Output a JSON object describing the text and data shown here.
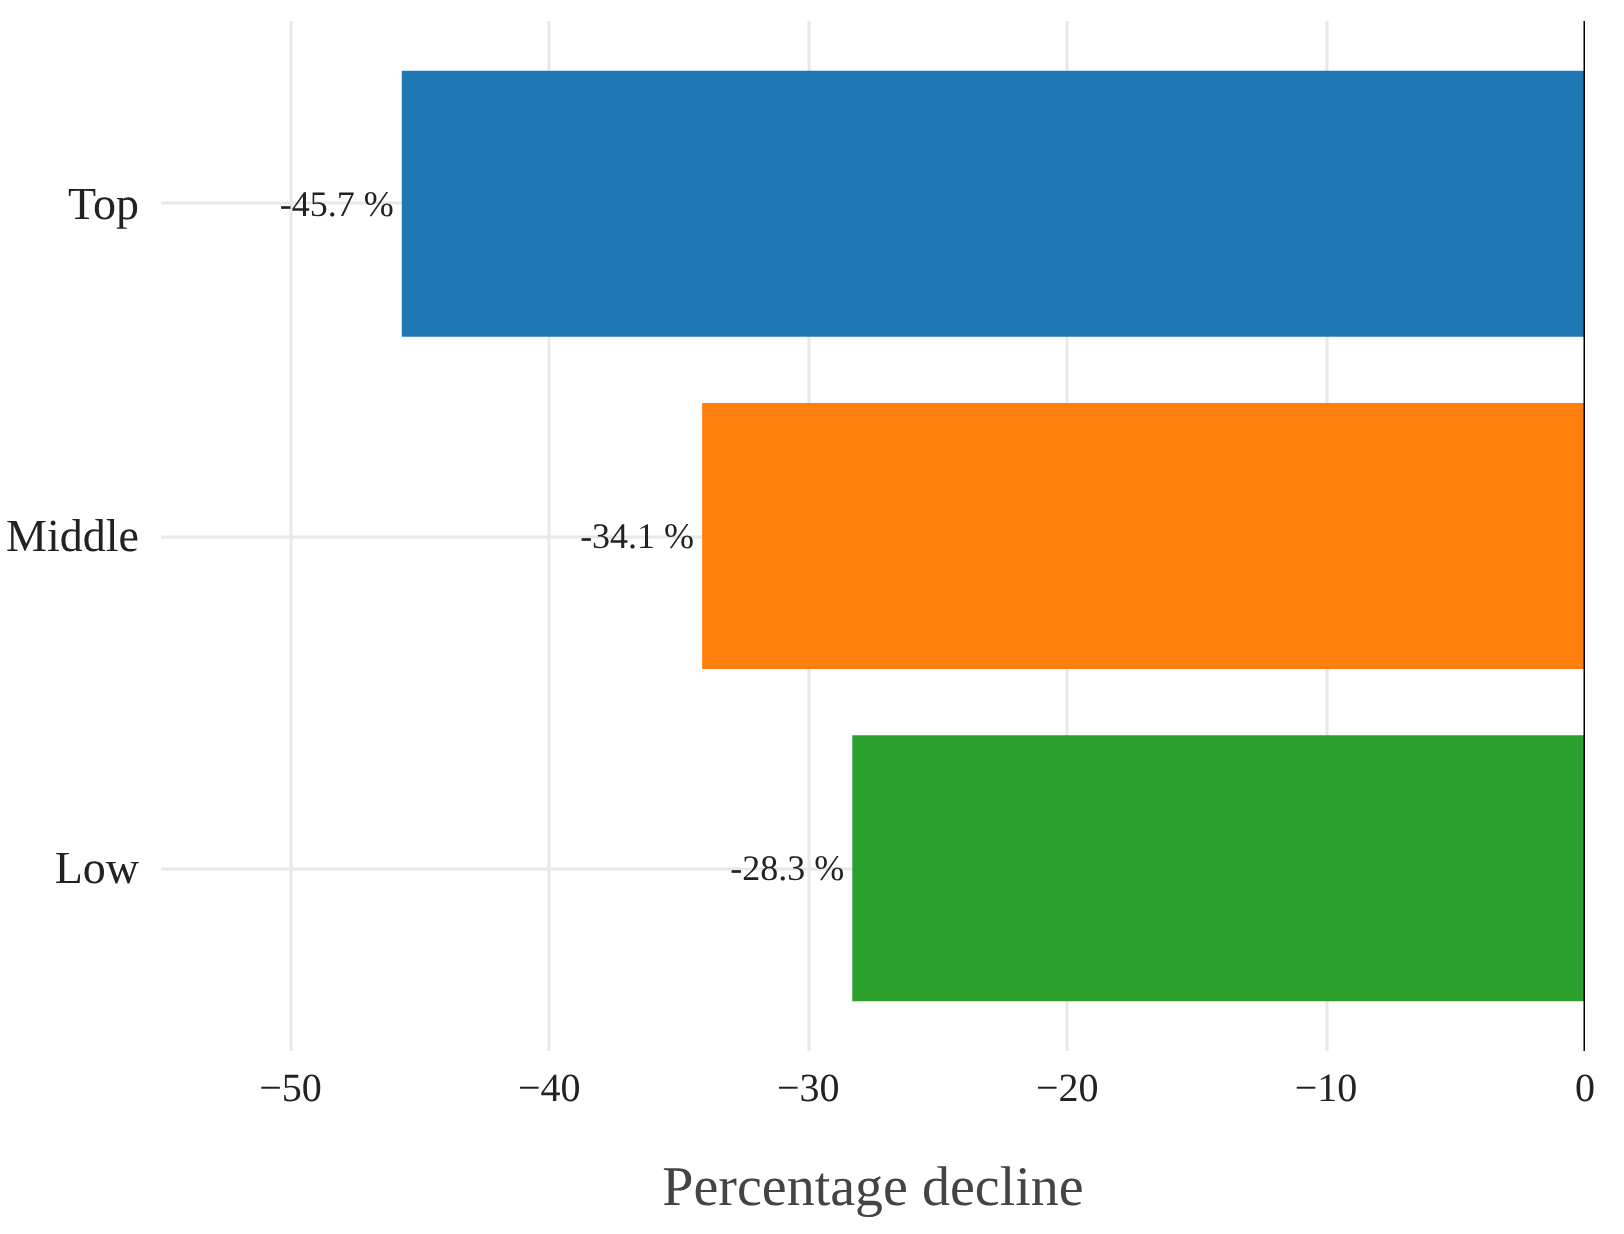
{
  "chart_data": {
    "type": "bar",
    "orientation": "horizontal",
    "categories": [
      "Top",
      "Middle",
      "Low"
    ],
    "values": [
      -45.7,
      -34.1,
      -28.3
    ],
    "colors": [
      "#1f77b4",
      "#ff7f0e",
      "#2ca02c"
    ],
    "value_labels": [
      "-45.7 %",
      "-34.1 %",
      "-28.3 %"
    ],
    "xlabel": "Percentage decline",
    "xlim": [
      -55,
      0
    ],
    "xticks": [
      {
        "value": -50,
        "label": "−50"
      },
      {
        "value": -40,
        "label": "−40"
      },
      {
        "value": -30,
        "label": "−30"
      },
      {
        "value": -20,
        "label": "−20"
      },
      {
        "value": -10,
        "label": "−10"
      },
      0
    ],
    "ref_lines": [
      {
        "axis": "x",
        "value": 0,
        "color": "#000000"
      }
    ],
    "grid": true
  }
}
